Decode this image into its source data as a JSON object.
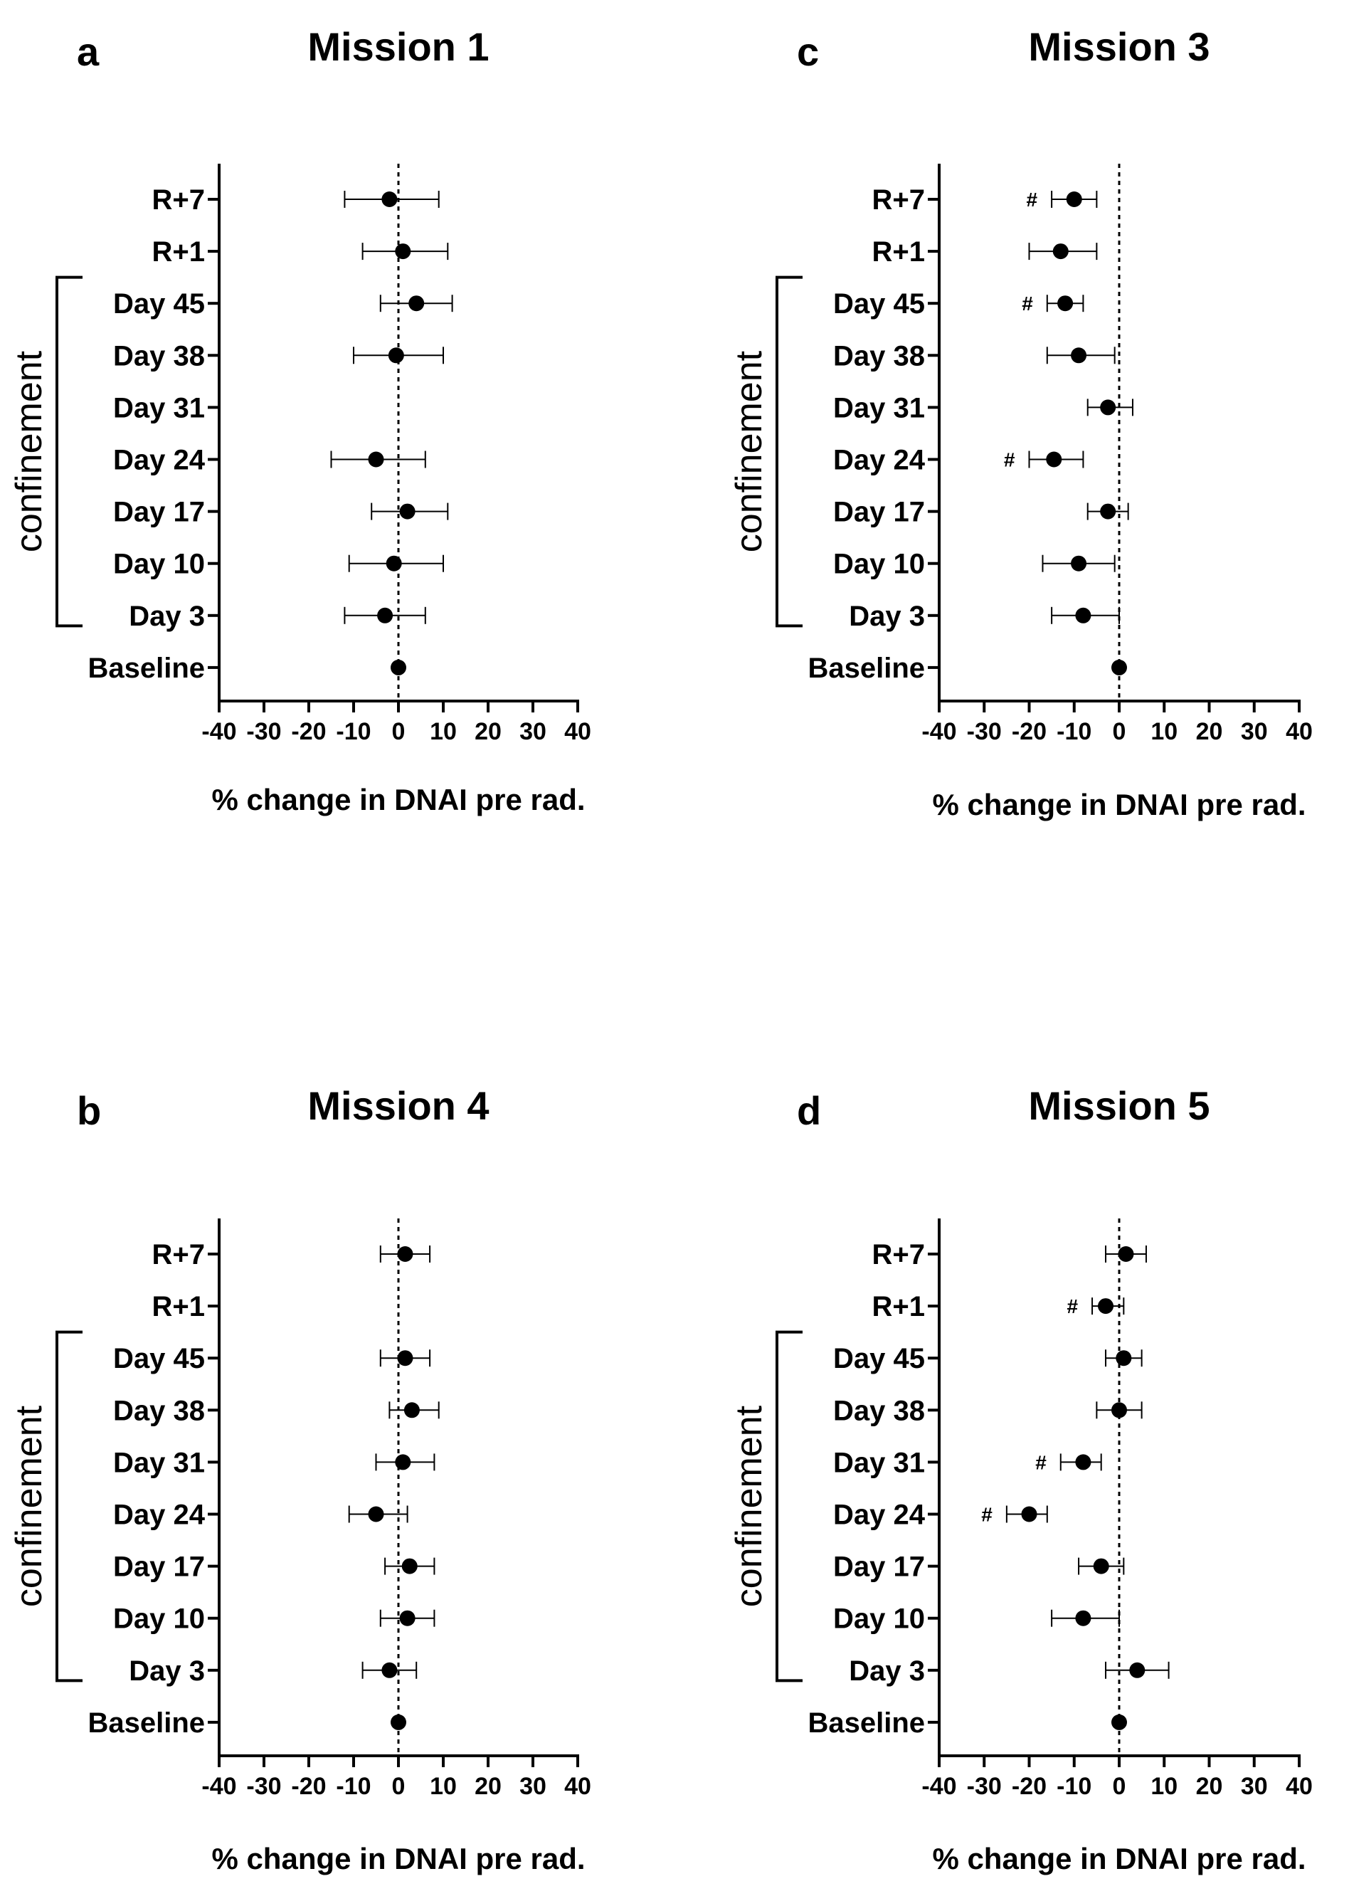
{
  "chart_data": [
    {
      "panel": "a",
      "title": "Mission 1",
      "type": "scatter",
      "orientation": "horizontal",
      "xlabel": "% change in DNAI pre rad.",
      "xlim": [
        -40,
        40
      ],
      "xticks": [
        "-40",
        "-30",
        "-20",
        "-10",
        "0",
        "10",
        "20",
        "30",
        "40"
      ],
      "categories": [
        "R+7",
        "R+1",
        "Day 45",
        "Day 38",
        "Day 31",
        "Day 24",
        "Day 17",
        "Day 10",
        "Day 3",
        "Baseline"
      ],
      "values": [
        -2,
        1,
        4,
        -0.5,
        null,
        -5,
        2,
        -1,
        -3,
        0
      ],
      "err_low": [
        -12,
        -8,
        -4,
        -10,
        null,
        -15,
        -6,
        -11,
        -12,
        null
      ],
      "err_high": [
        9,
        11,
        12,
        10,
        null,
        6,
        11,
        10,
        6,
        null
      ],
      "significance": [
        null,
        null,
        null,
        null,
        null,
        null,
        null,
        null,
        null,
        null
      ],
      "bracket_label": "confinement"
    },
    {
      "panel": "b",
      "title": "Mission 4",
      "type": "scatter",
      "orientation": "horizontal",
      "xlabel": "% change in DNAI pre rad.",
      "xlim": [
        -40,
        40
      ],
      "xticks": [
        "-40",
        "-30",
        "-20",
        "-10",
        "0",
        "10",
        "20",
        "30",
        "40"
      ],
      "categories": [
        "R+7",
        "R+1",
        "Day 45",
        "Day 38",
        "Day 31",
        "Day 24",
        "Day 17",
        "Day 10",
        "Day 3",
        "Baseline"
      ],
      "values": [
        1.5,
        null,
        1.5,
        3,
        1,
        -5,
        2.5,
        2,
        -2,
        0
      ],
      "err_low": [
        -4,
        null,
        -4,
        -2,
        -5,
        -11,
        -3,
        -4,
        -8,
        null
      ],
      "err_high": [
        7,
        null,
        7,
        9,
        8,
        2,
        8,
        8,
        4,
        null
      ],
      "significance": [
        null,
        null,
        null,
        null,
        null,
        null,
        null,
        null,
        null,
        null
      ],
      "bracket_label": "confinement"
    },
    {
      "panel": "c",
      "title": "Mission 3",
      "type": "scatter",
      "orientation": "horizontal",
      "xlabel": "% change in DNAI pre rad.",
      "xlim": [
        -40,
        40
      ],
      "xticks": [
        "-40",
        "-30",
        "-20",
        "-10",
        "0",
        "10",
        "20",
        "30",
        "40"
      ],
      "categories": [
        "R+7",
        "R+1",
        "Day 45",
        "Day 38",
        "Day 31",
        "Day 24",
        "Day 17",
        "Day 10",
        "Day 3",
        "Baseline"
      ],
      "values": [
        -10,
        -13,
        -12,
        -9,
        -2.5,
        -14.5,
        -2.5,
        -9,
        -8,
        0
      ],
      "err_low": [
        -15,
        -20,
        -16,
        -16,
        -7,
        -20,
        -7,
        -17,
        -15,
        null
      ],
      "err_high": [
        -5,
        -5,
        -8,
        -1,
        3,
        -8,
        2,
        -1,
        0,
        null
      ],
      "significance": [
        "#",
        null,
        "#",
        null,
        null,
        "#",
        null,
        null,
        null,
        null
      ],
      "bracket_label": "confinement"
    },
    {
      "panel": "d",
      "title": "Mission 5",
      "type": "scatter",
      "orientation": "horizontal",
      "xlabel": "% change in DNAI pre rad.",
      "xlim": [
        -40,
        40
      ],
      "xticks": [
        "-40",
        "-30",
        "-20",
        "-10",
        "0",
        "10",
        "20",
        "30",
        "40"
      ],
      "categories": [
        "R+7",
        "R+1",
        "Day 45",
        "Day 38",
        "Day 31",
        "Day 24",
        "Day 17",
        "Day 10",
        "Day 3",
        "Baseline"
      ],
      "values": [
        1.5,
        -3,
        1,
        0,
        -8,
        -20,
        -4,
        -8,
        4,
        0
      ],
      "err_low": [
        -3,
        -6,
        -3,
        -5,
        -13,
        -25,
        -9,
        -15,
        -3,
        null
      ],
      "err_high": [
        6,
        1,
        5,
        5,
        -4,
        -16,
        1,
        0,
        11,
        null
      ],
      "significance": [
        null,
        "#",
        null,
        null,
        "#",
        "#",
        null,
        null,
        null,
        null
      ],
      "bracket_label": "confinement"
    }
  ]
}
